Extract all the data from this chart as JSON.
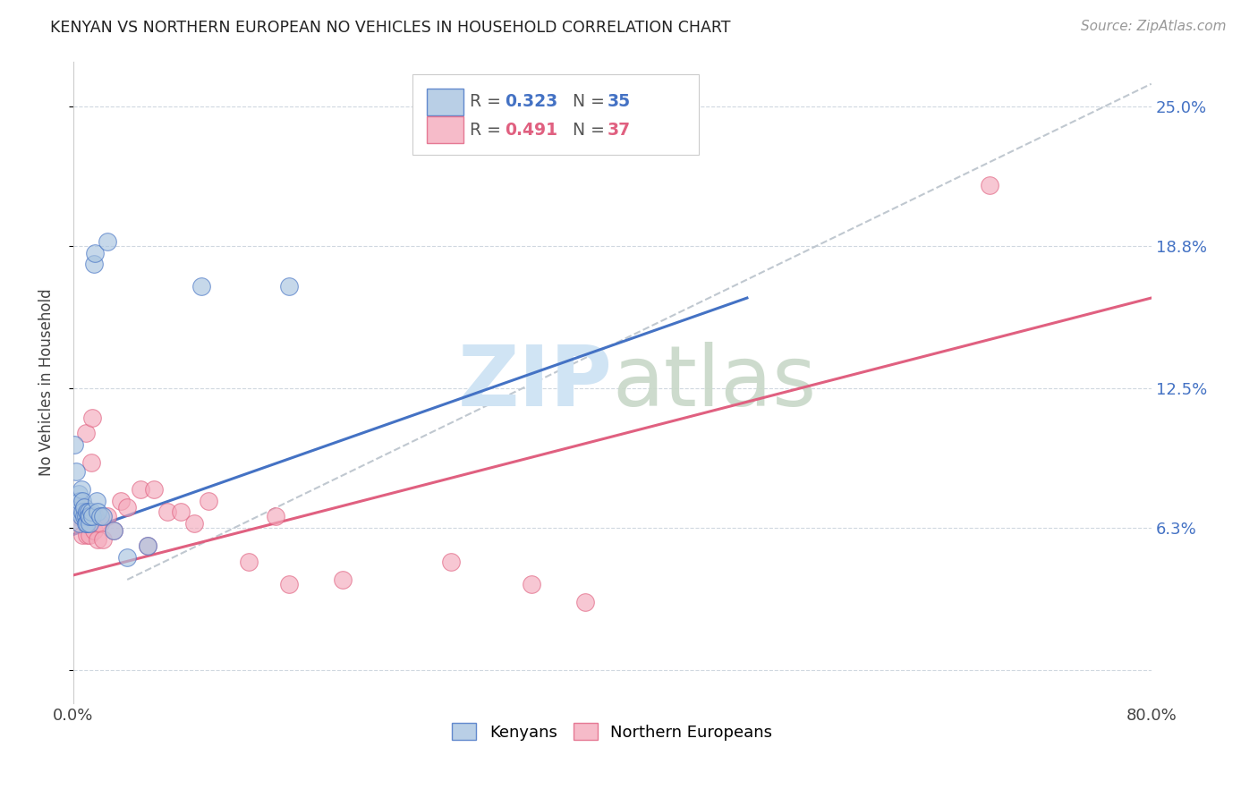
{
  "title": "KENYAN VS NORTHERN EUROPEAN NO VEHICLES IN HOUSEHOLD CORRELATION CHART",
  "source": "Source: ZipAtlas.com",
  "ylabel": "No Vehicles in Household",
  "xlim": [
    0.0,
    0.8
  ],
  "ylim": [
    -0.015,
    0.27
  ],
  "ytick_vals": [
    0.0,
    0.063,
    0.125,
    0.188,
    0.25
  ],
  "ytick_labels": [
    "",
    "6.3%",
    "12.5%",
    "18.8%",
    "25.0%"
  ],
  "xtick_vals": [
    0.0,
    0.1,
    0.2,
    0.3,
    0.4,
    0.5,
    0.6,
    0.7,
    0.8
  ],
  "xtick_labels": [
    "0.0%",
    "",
    "",
    "",
    "",
    "",
    "",
    "",
    "80.0%"
  ],
  "legend_r_blue": "0.323",
  "legend_n_blue": "35",
  "legend_r_pink": "0.491",
  "legend_n_pink": "37",
  "blue_color": "#A8C4E0",
  "pink_color": "#F4AABC",
  "blue_line_color": "#4472C4",
  "pink_line_color": "#E06080",
  "diag_line_color": "#C0C8D0",
  "grid_color": "#D0D8E0",
  "watermark_color": "#D0E4F4",
  "kenyans_x": [
    0.001,
    0.002,
    0.003,
    0.004,
    0.004,
    0.005,
    0.005,
    0.006,
    0.006,
    0.007,
    0.007,
    0.008,
    0.008,
    0.009,
    0.009,
    0.01,
    0.01,
    0.011,
    0.011,
    0.012,
    0.012,
    0.013,
    0.014,
    0.015,
    0.016,
    0.017,
    0.018,
    0.02,
    0.022,
    0.025,
    0.03,
    0.04,
    0.055,
    0.095,
    0.16
  ],
  "kenyans_y": [
    0.1,
    0.088,
    0.072,
    0.078,
    0.07,
    0.075,
    0.065,
    0.08,
    0.068,
    0.075,
    0.07,
    0.068,
    0.072,
    0.068,
    0.065,
    0.07,
    0.065,
    0.07,
    0.068,
    0.065,
    0.068,
    0.07,
    0.068,
    0.18,
    0.185,
    0.075,
    0.07,
    0.068,
    0.068,
    0.19,
    0.062,
    0.05,
    0.055,
    0.17,
    0.17
  ],
  "northern_european_x": [
    0.002,
    0.004,
    0.005,
    0.006,
    0.007,
    0.008,
    0.009,
    0.01,
    0.011,
    0.012,
    0.013,
    0.014,
    0.015,
    0.016,
    0.017,
    0.018,
    0.02,
    0.022,
    0.025,
    0.03,
    0.035,
    0.04,
    0.05,
    0.055,
    0.06,
    0.07,
    0.08,
    0.09,
    0.1,
    0.13,
    0.15,
    0.16,
    0.2,
    0.28,
    0.34,
    0.38,
    0.68
  ],
  "northern_european_y": [
    0.068,
    0.072,
    0.065,
    0.068,
    0.06,
    0.072,
    0.105,
    0.06,
    0.068,
    0.06,
    0.092,
    0.112,
    0.062,
    0.068,
    0.065,
    0.058,
    0.065,
    0.058,
    0.068,
    0.062,
    0.075,
    0.072,
    0.08,
    0.055,
    0.08,
    0.07,
    0.07,
    0.065,
    0.075,
    0.048,
    0.068,
    0.038,
    0.04,
    0.048,
    0.038,
    0.03,
    0.215
  ],
  "blue_line_x": [
    0.0,
    0.5
  ],
  "blue_line_y": [
    0.06,
    0.165
  ],
  "pink_line_x": [
    0.0,
    0.8
  ],
  "pink_line_y": [
    0.042,
    0.165
  ],
  "diag_line_x": [
    0.04,
    0.8
  ],
  "diag_line_y": [
    0.04,
    0.26
  ]
}
